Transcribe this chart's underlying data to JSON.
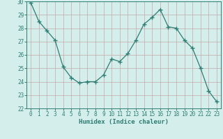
{
  "x": [
    0,
    1,
    2,
    3,
    4,
    5,
    6,
    7,
    8,
    9,
    10,
    11,
    12,
    13,
    14,
    15,
    16,
    17,
    18,
    19,
    20,
    21,
    22,
    23
  ],
  "y": [
    29.9,
    28.5,
    27.8,
    27.1,
    25.1,
    24.3,
    23.9,
    24.0,
    24.0,
    24.5,
    25.7,
    25.5,
    26.1,
    27.1,
    28.3,
    28.8,
    29.4,
    28.1,
    28.0,
    27.1,
    26.5,
    25.0,
    23.3,
    22.5
  ],
  "line_color": "#2e7d72",
  "marker": "+",
  "marker_size": 4,
  "marker_linewidth": 1.0,
  "bg_color": "#d4eeeb",
  "grid_color": "#c4a8a8",
  "xlabel": "Humidex (Indice chaleur)",
  "xlim": [
    -0.5,
    23.5
  ],
  "ylim": [
    22,
    30
  ],
  "yticks": [
    22,
    23,
    24,
    25,
    26,
    27,
    28,
    29,
    30
  ],
  "xticks": [
    0,
    1,
    2,
    3,
    4,
    5,
    6,
    7,
    8,
    9,
    10,
    11,
    12,
    13,
    14,
    15,
    16,
    17,
    18,
    19,
    20,
    21,
    22,
    23
  ],
  "tick_label_fontsize": 5.5,
  "xlabel_fontsize": 6.5,
  "line_width": 0.9
}
